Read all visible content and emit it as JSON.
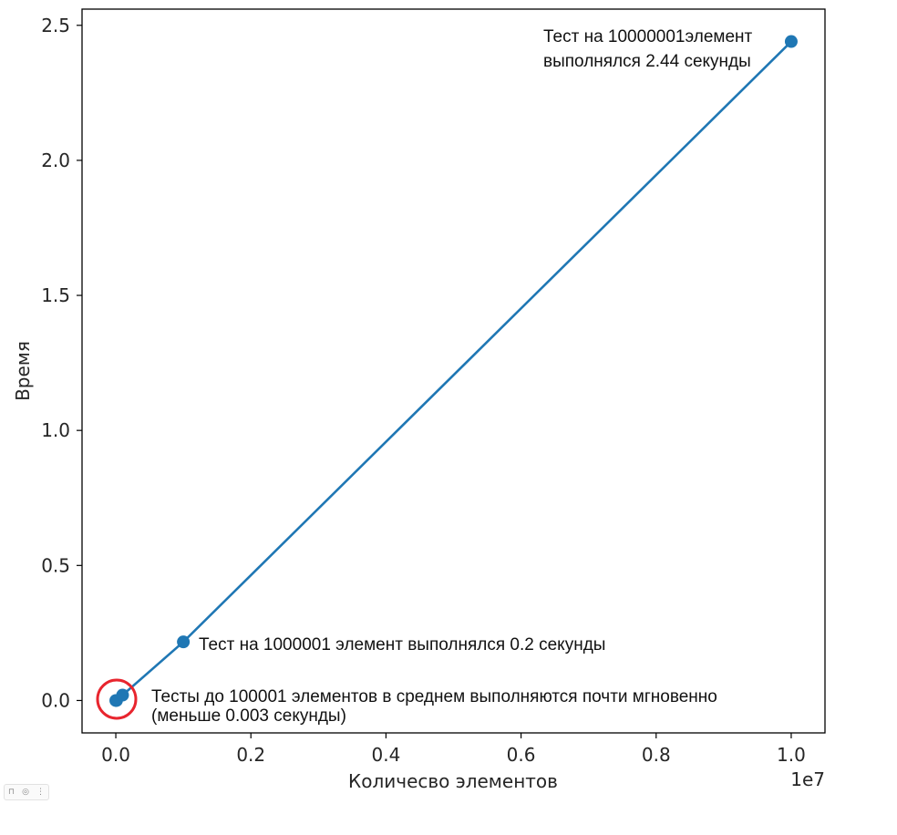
{
  "chart_data": {
    "type": "line",
    "xlabel": "Количесво элементов",
    "ylabel": "Время",
    "x_offset_label": "1e7",
    "x": [
      1,
      10001,
      100001,
      1000001,
      10000001
    ],
    "y": [
      0.0,
      0.0,
      0.02,
      0.217,
      2.44
    ],
    "xlim": [
      -500000,
      10500000
    ],
    "ylim": [
      -0.12,
      2.56
    ],
    "xticks": [
      0,
      2000000,
      4000000,
      6000000,
      8000000,
      10000000
    ],
    "xtick_labels": [
      "0.0",
      "0.2",
      "0.4",
      "0.6",
      "0.8",
      "1.0"
    ],
    "yticks": [
      0.0,
      0.5,
      1.0,
      1.5,
      2.0,
      2.5
    ],
    "ytick_labels": [
      "0.0",
      "0.5",
      "1.0",
      "1.5",
      "2.0",
      "2.5"
    ],
    "series_color": "#1f77b4",
    "highlight_color": "#e8252e",
    "grid": false,
    "annotations": [
      {
        "lines": [
          "Тест на 10000001элемент",
          "выполнялся 2.44 секунды"
        ]
      },
      {
        "lines": [
          "Тест на 1000001 элемент выполнялся 0.2 секунды"
        ]
      },
      {
        "lines": [
          "Тесты до 100001 элементов в среднем выполняются почти мгновенно",
          "(меньше 0.003 секунды)"
        ]
      }
    ]
  },
  "toolbar": {
    "icons": [
      {
        "name": "bookmark-icon",
        "glyph": "⊓"
      },
      {
        "name": "camera-icon",
        "glyph": "◎"
      },
      {
        "name": "more-icon",
        "glyph": "⋮"
      }
    ]
  }
}
